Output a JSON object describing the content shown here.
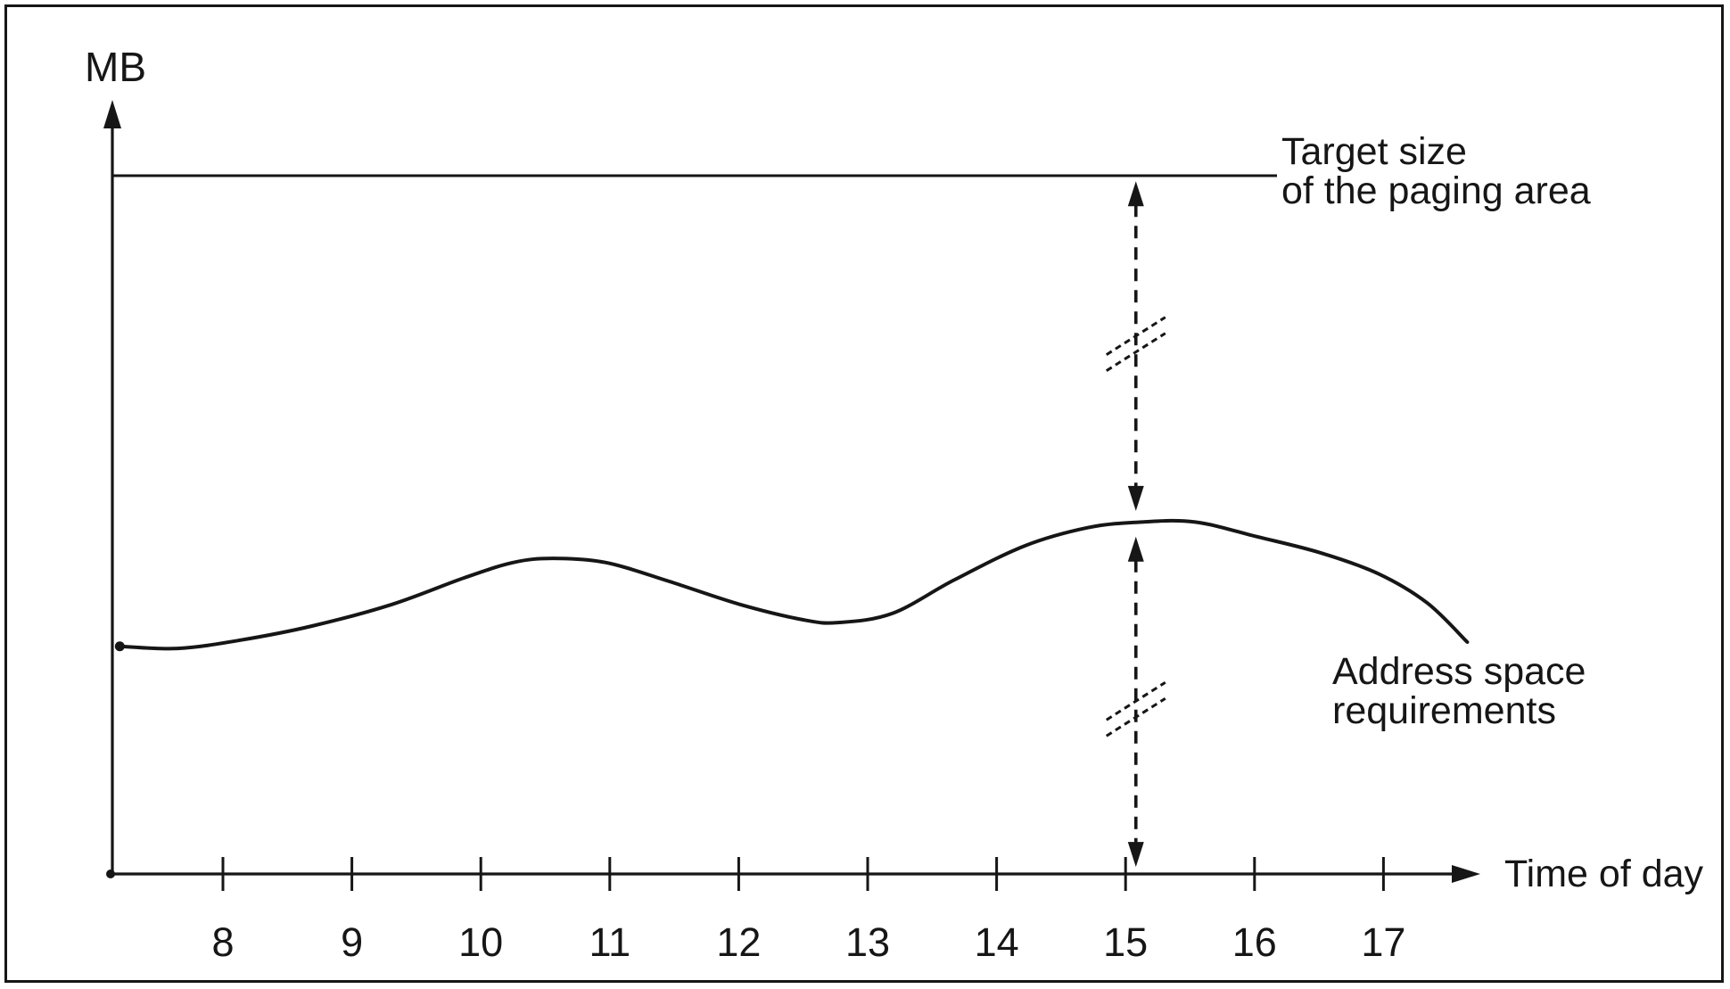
{
  "figure": {
    "y_axis_label": "MB",
    "x_axis_label": "Time of day",
    "target_label": {
      "line1": "Target size",
      "line2": "of the paging area"
    },
    "curve_label": {
      "line1": "Address space",
      "line2": "requirements"
    }
  },
  "colors": {
    "ink": "#161616",
    "background": "#ffffff"
  },
  "chart_data": {
    "type": "line",
    "xlabel": "Time of day",
    "ylabel": "MB",
    "x_ticks": [
      8,
      9,
      10,
      11,
      12,
      13,
      14,
      15,
      16,
      17
    ],
    "xlim": [
      7.1,
      18.1
    ],
    "ylim": [
      0,
      115
    ],
    "grid": false,
    "legend_position": "inline-annotations",
    "value_scale_note": "y axis has no numeric ticks; values are relative units where 100 = target line height",
    "series": [
      {
        "name": "Target size of the paging area",
        "style": "horizontal-line",
        "value": 100
      },
      {
        "name": "Address space requirements",
        "style": "smooth-curve",
        "points": [
          {
            "t": 7.2,
            "mb": 32.6
          },
          {
            "t": 7.65,
            "mb": 32.3
          },
          {
            "t": 8.14,
            "mb": 33.5
          },
          {
            "t": 8.69,
            "mb": 35.5
          },
          {
            "t": 9.31,
            "mb": 38.6
          },
          {
            "t": 9.87,
            "mb": 42.4
          },
          {
            "t": 10.25,
            "mb": 44.6
          },
          {
            "t": 10.56,
            "mb": 45.2
          },
          {
            "t": 10.97,
            "mb": 44.6
          },
          {
            "t": 11.46,
            "mb": 41.9
          },
          {
            "t": 12.01,
            "mb": 38.6
          },
          {
            "t": 12.5,
            "mb": 36.4
          },
          {
            "t": 12.77,
            "mb": 36.0
          },
          {
            "t": 13.19,
            "mb": 37.3
          },
          {
            "t": 13.67,
            "mb": 42.1
          },
          {
            "t": 14.22,
            "mb": 47.0
          },
          {
            "t": 14.71,
            "mb": 49.6
          },
          {
            "t": 15.12,
            "mb": 50.4
          },
          {
            "t": 15.54,
            "mb": 50.4
          },
          {
            "t": 16.02,
            "mb": 48.3
          },
          {
            "t": 16.51,
            "mb": 46.0
          },
          {
            "t": 16.96,
            "mb": 43.0
          },
          {
            "t": 17.34,
            "mb": 38.8
          },
          {
            "t": 17.65,
            "mb": 33.2
          }
        ]
      }
    ],
    "annotations": [
      {
        "name": "upper-gap-arrow",
        "type": "double-headed-dashed-arrow",
        "x_t": 15.08,
        "from_mb": 99.2,
        "to_mb": 52.0,
        "break_mb": 75.9
      },
      {
        "name": "lower-gap-arrow",
        "type": "double-headed-dashed-arrow",
        "x_t": 15.08,
        "from_mb": 48.3,
        "to_mb": 1.0,
        "break_mb": 23.6
      }
    ]
  }
}
